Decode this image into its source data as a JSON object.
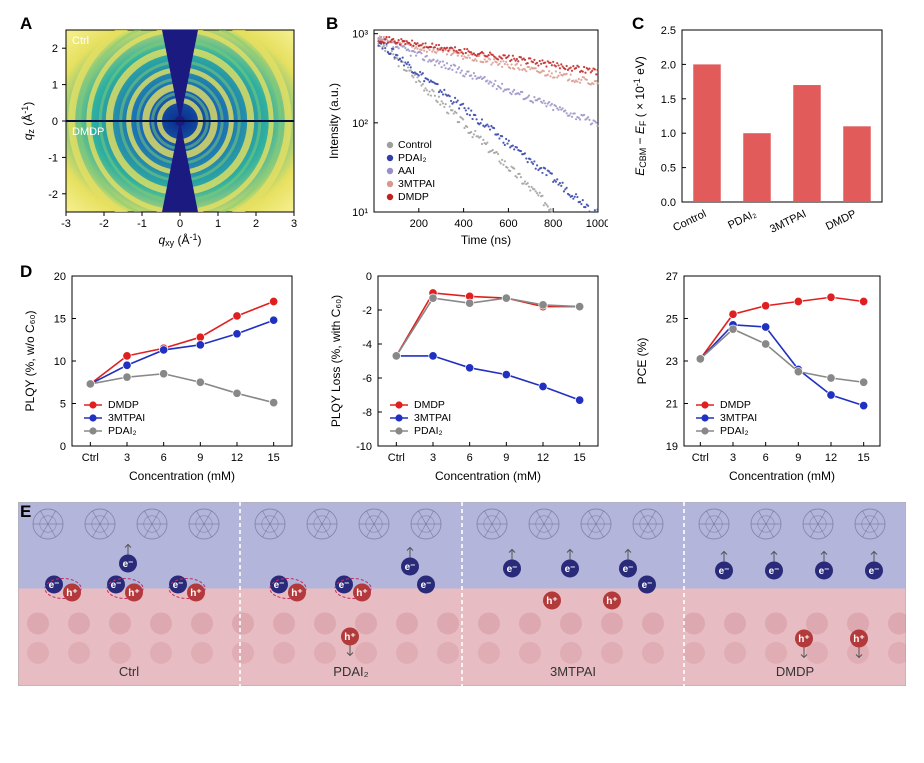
{
  "panelA": {
    "label": "A",
    "type": "diffraction-image",
    "top_label": "Ctrl",
    "bottom_label": "DMDP",
    "xlabel": "qxy (Å⁻¹)",
    "ylabel": "qz (Å⁻¹)",
    "xlim": [
      -3,
      3
    ],
    "ylim": [
      -2.5,
      2.5
    ],
    "xticks": [
      -3,
      -2,
      -1,
      0,
      1,
      2,
      3
    ],
    "yticks": [
      -2,
      -1,
      0,
      1,
      2
    ],
    "background_gradient": [
      "#0a2a8a",
      "#1a6ab5",
      "#2fb0a0",
      "#e6e060",
      "#f5f090"
    ],
    "ring_color": "#e6e060",
    "center_wedge_color": "#1a1a80",
    "label_fontsize": 11,
    "tick_fontsize": 11
  },
  "panelB": {
    "label": "B",
    "type": "scatter-decay",
    "xlabel": "Time (ns)",
    "ylabel": "Intensity (a.u.)",
    "xlim": [
      0,
      1000
    ],
    "xticks": [
      200,
      400,
      600,
      800,
      1000
    ],
    "ylim": [
      10,
      1100
    ],
    "yscale": "log",
    "yticks": [
      10,
      100,
      1000
    ],
    "ytick_labels": [
      "10¹",
      "10²",
      "10³"
    ],
    "series": [
      {
        "name": "Control",
        "color": "#9e9e9e",
        "y0": 900,
        "tau": 180,
        "noise": 0.12
      },
      {
        "name": "PDAI₂",
        "color": "#2f3ea8",
        "y0": 900,
        "tau": 220,
        "noise": 0.11
      },
      {
        "name": "AAI",
        "color": "#9a8fc7",
        "y0": 900,
        "tau": 450,
        "noise": 0.1
      },
      {
        "name": "3MTPAI",
        "color": "#d9988c",
        "y0": 900,
        "tau": 850,
        "noise": 0.09
      },
      {
        "name": "DMDP",
        "color": "#c02020",
        "y0": 900,
        "tau": 1150,
        "noise": 0.08
      }
    ],
    "legend_pos": "bottom-left",
    "tick_fontsize": 11,
    "label_fontsize": 12
  },
  "panelC": {
    "label": "C",
    "type": "bar",
    "ylabel": "E_CBM − E_F ( × 10⁻¹ eV)",
    "categories": [
      "Control",
      "PDAI₂",
      "3MTPAI",
      "DMDP"
    ],
    "values": [
      2.0,
      1.0,
      1.7,
      1.1
    ],
    "bar_color": "#e15b5b",
    "ylim": [
      0.0,
      2.5
    ],
    "yticks": [
      0.0,
      0.5,
      1.0,
      1.5,
      2.0,
      2.5
    ],
    "bar_width": 0.55,
    "background": "#ffffff",
    "tick_fontsize": 11,
    "label_fontsize": 12
  },
  "panelD": {
    "label": "D",
    "xlabel": "Concentration (mM)",
    "xcats": [
      "Ctrl",
      "3",
      "6",
      "9",
      "12",
      "15"
    ],
    "series_meta": [
      {
        "name": "DMDP",
        "color": "#e02020",
        "marker": "circle"
      },
      {
        "name": "3MTPAI",
        "color": "#2030c0",
        "marker": "circle"
      },
      {
        "name": "PDAI₂",
        "color": "#888888",
        "marker": "circle"
      }
    ],
    "charts": [
      {
        "type": "line",
        "ylabel": "PLQY (%, w/o C₆₀)",
        "ylim": [
          0,
          20
        ],
        "yticks": [
          0,
          5,
          10,
          15,
          20
        ],
        "series": {
          "DMDP": [
            7.3,
            10.6,
            11.5,
            12.8,
            15.3,
            17.0
          ],
          "3MTPAI": [
            7.3,
            9.5,
            11.3,
            11.9,
            13.2,
            14.8
          ],
          "PDAI₂": [
            7.3,
            8.1,
            8.5,
            7.5,
            6.2,
            5.1
          ]
        },
        "legend_pos": "bottom-left"
      },
      {
        "type": "line",
        "ylabel": "PLQY Loss (%, with C₆₀)",
        "ylim": [
          -10,
          0
        ],
        "yticks": [
          -10,
          -8,
          -6,
          -4,
          -2,
          0
        ],
        "series": {
          "DMDP": [
            -4.7,
            -1.0,
            -1.2,
            -1.3,
            -1.8,
            -1.8
          ],
          "3MTPAI": [
            -4.7,
            -4.7,
            -5.4,
            -5.8,
            -6.5,
            -7.3
          ],
          "PDAI₂": [
            -4.7,
            -1.3,
            -1.6,
            -1.3,
            -1.7,
            -1.8
          ]
        },
        "legend_pos": "bottom-left"
      },
      {
        "type": "line",
        "ylabel": "PCE (%)",
        "ylim": [
          19,
          27
        ],
        "yticks": [
          19,
          21,
          23,
          25,
          27
        ],
        "series": {
          "DMDP": [
            23.1,
            25.2,
            25.6,
            25.8,
            26.0,
            25.8
          ],
          "3MTPAI": [
            23.1,
            24.7,
            24.6,
            22.6,
            21.4,
            20.9
          ],
          "PDAI₂": [
            23.1,
            24.5,
            23.8,
            22.5,
            22.2,
            22.0
          ]
        },
        "legend_pos": "bottom-left"
      }
    ],
    "marker_size": 4.2,
    "line_width": 1.6,
    "tick_fontsize": 11,
    "label_fontsize": 12
  },
  "panelE": {
    "label": "E",
    "type": "schematic",
    "top_band_color": "#b3b5db",
    "bottom_band_color": "#e7bcc2",
    "border_color": "#b0b0b0",
    "divider_color": "#ffffff",
    "fullerene_color": "#6a6a8a",
    "electron_fill": "#2a2a7a",
    "hole_fill": "#b23a3a",
    "defect_outline": "#c03060",
    "arrow_color": "#555555",
    "labels": [
      "Ctrl",
      "PDAI₂",
      "3MTPAI",
      "DMDP"
    ]
  },
  "global": {
    "panel_label_fontsize": 17,
    "panel_label_weight": "bold",
    "background": "#ffffff",
    "font_family": "Arial"
  }
}
